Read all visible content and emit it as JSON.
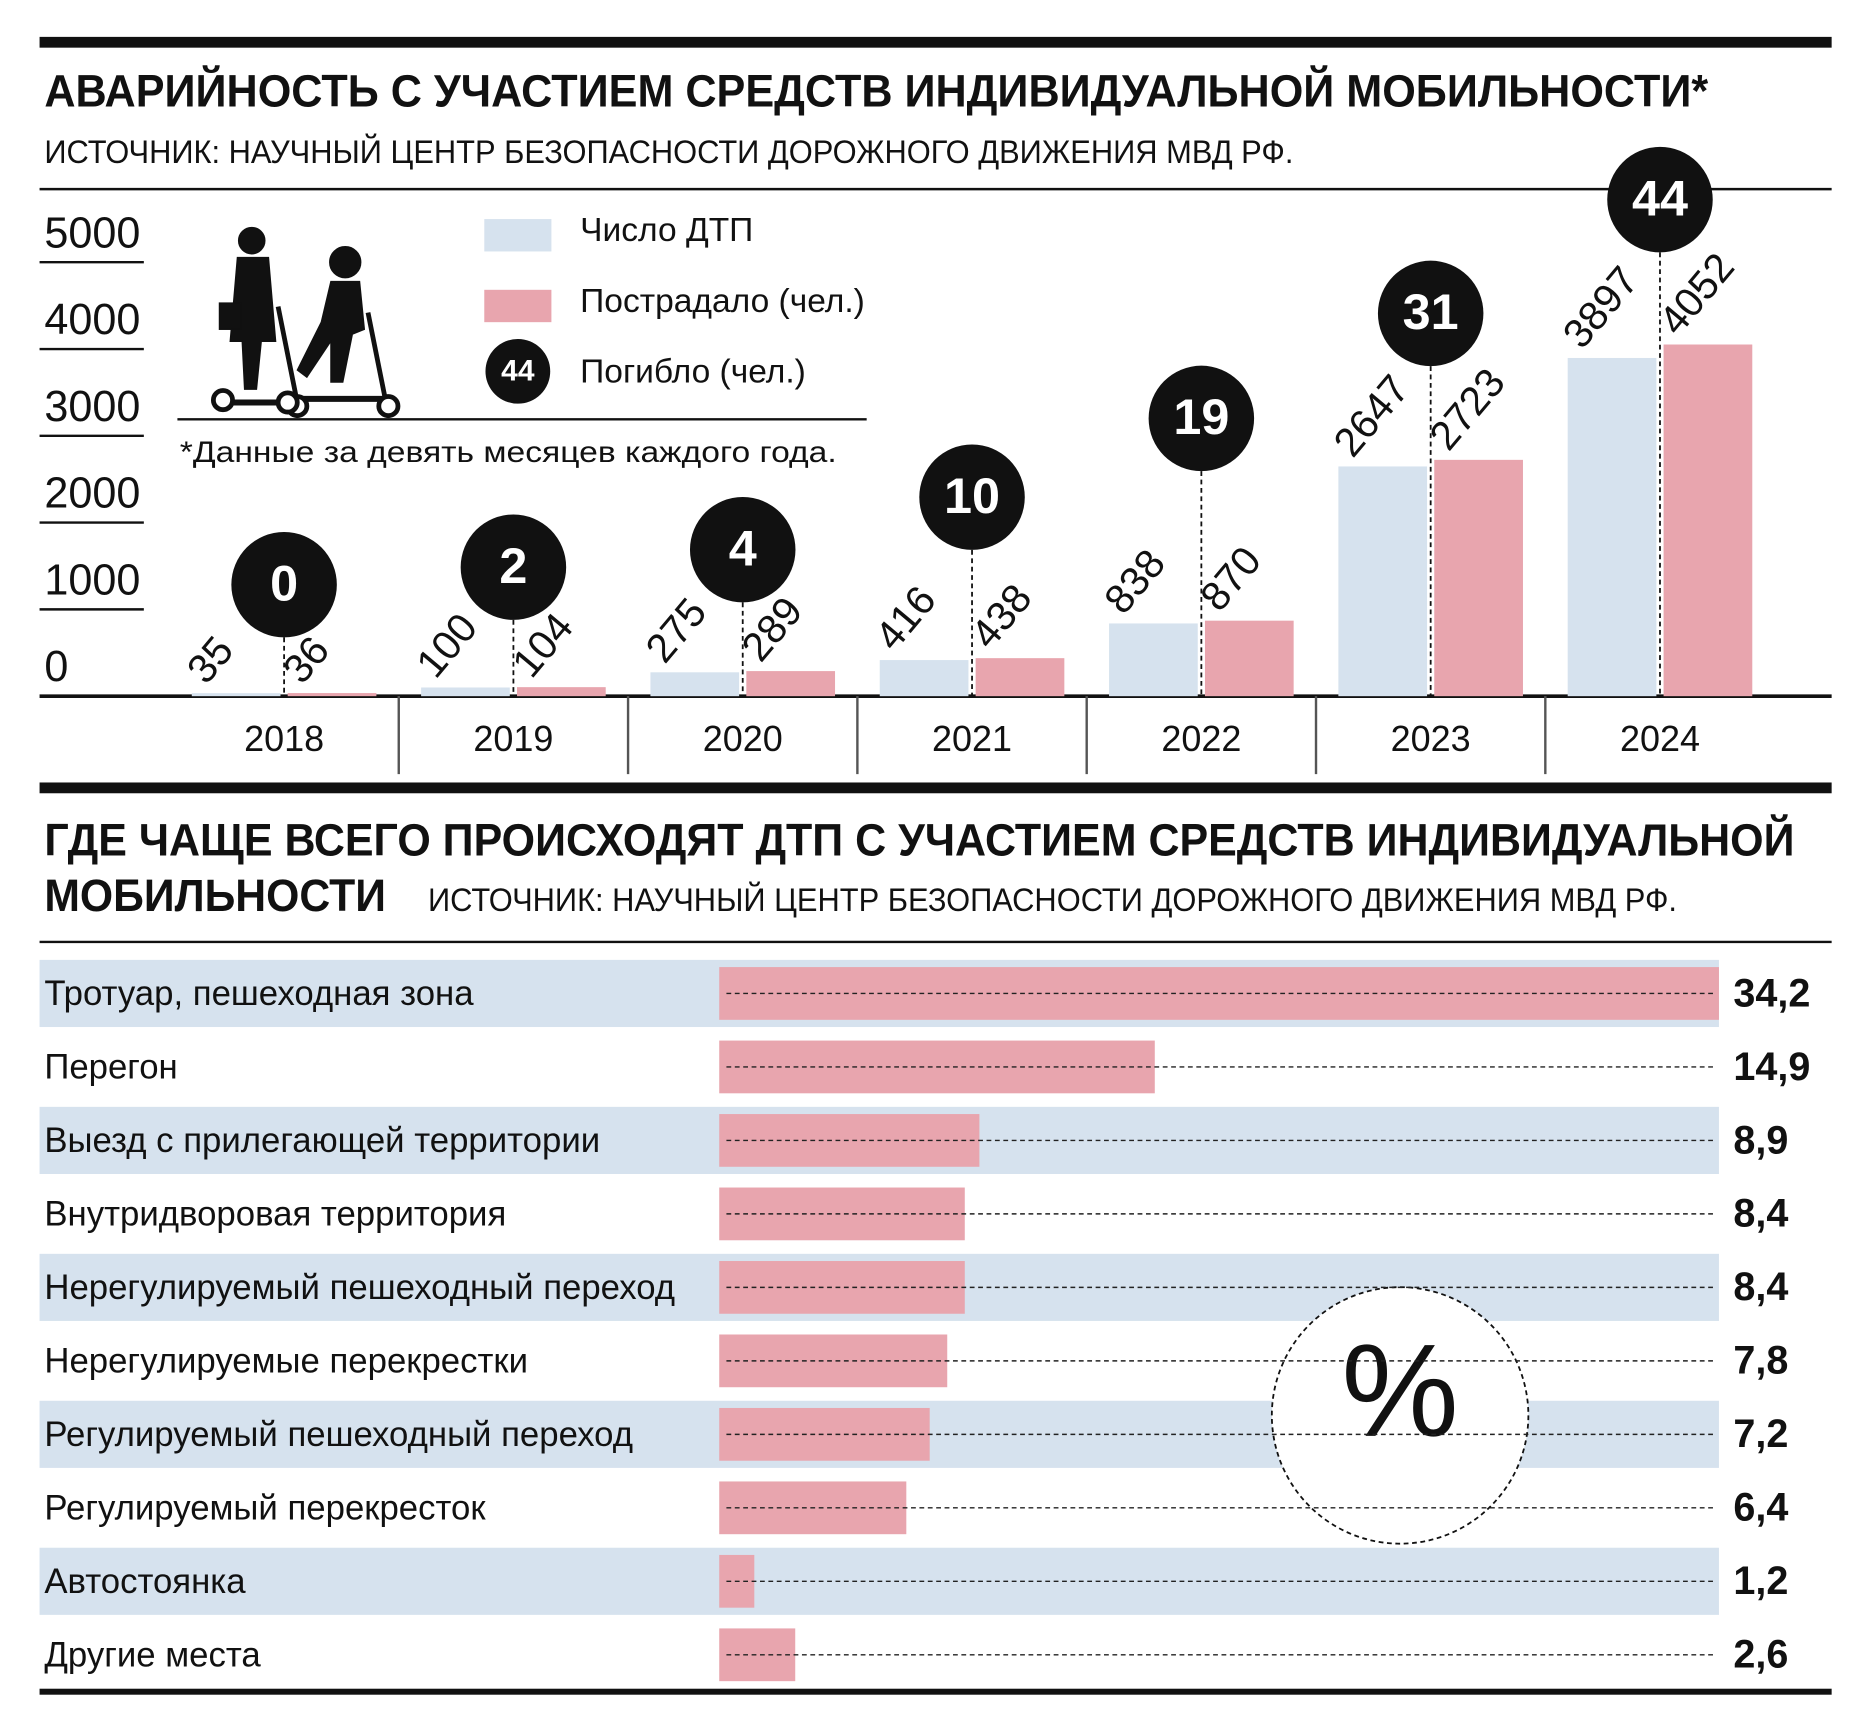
{
  "chart_data": [
    {
      "type": "grouped-bar",
      "title": "АВАРИЙНОСТЬ С УЧАСТИЕМ СРЕДСТВ ИНДИВИДУАЛЬНОЙ МОБИЛЬНОСТИ*",
      "subtitle": "ИСТОЧНИК: НАУЧНЫЙ ЦЕНТР БЕЗОПАСНОСТИ ДОРОЖНОГО ДВИЖЕНИЯ МВД РФ.",
      "note": "*Данные за девять месяцев каждого года.",
      "categories": [
        "2018",
        "2019",
        "2020",
        "2021",
        "2022",
        "2023",
        "2024"
      ],
      "series": [
        {
          "name": "Число ДТП",
          "color": "#d6e2ee",
          "values": [
            35,
            100,
            275,
            416,
            838,
            2647,
            3897
          ]
        },
        {
          "name": "Пострадало (чел.)",
          "color": "#e8a5ae",
          "values": [
            36,
            104,
            289,
            438,
            870,
            2723,
            4052
          ]
        },
        {
          "name": "Погибло (чел.)",
          "color": "#111111",
          "values": [
            0,
            2,
            4,
            10,
            19,
            31,
            44
          ]
        }
      ],
      "ylim": [
        0,
        5000
      ],
      "yticks": [
        0,
        1000,
        2000,
        3000,
        4000,
        5000
      ]
    },
    {
      "type": "hbar",
      "title": [
        "ГДЕ ЧАЩЕ ВСЕГО ПРОИСХОДЯТ ДТП С УЧАСТИЕМ СРЕДСТВ ИНДИВИДУАЛЬНОЙ",
        "МОБИЛЬНОСТИ"
      ],
      "subtitle": "ИСТОЧНИК: НАУЧНЫЙ ЦЕНТР БЕЗОПАСНОСТИ ДОРОЖНОГО ДВИЖЕНИЯ МВД РФ.",
      "unit_label": "%",
      "categories": [
        "Тротуар, пешеходная зона",
        "Перегон",
        "Выезд с прилегающей территории",
        "Внутридворовая территория",
        "Нерегулируемый пешеходный переход",
        "Нерегулируемые перекрестки",
        "Регулируемый пешеходный переход",
        "Регулируемый перекресток",
        "Автостоянка",
        "Другие места"
      ],
      "values": [
        34.2,
        14.9,
        8.9,
        8.4,
        8.4,
        7.8,
        7.2,
        6.4,
        1.2,
        2.6
      ],
      "value_labels": [
        "34,2",
        "14,9",
        "8,9",
        "8,4",
        "8,4",
        "7,8",
        "7,2",
        "6,4",
        "1,2",
        "2,6"
      ],
      "color": "#e8a5ae",
      "band_color": "#d6e2ee"
    }
  ]
}
